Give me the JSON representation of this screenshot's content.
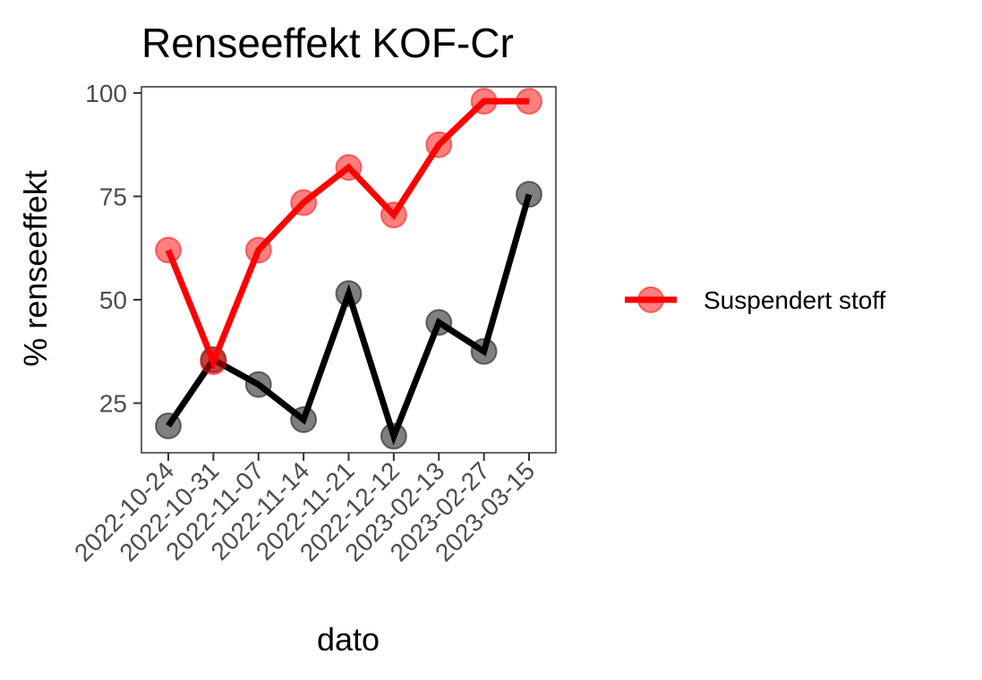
{
  "chart_data": {
    "type": "line",
    "title": "Renseeffekt KOF-Cr",
    "xlabel": "dato",
    "ylabel": "% renseeffekt",
    "categories": [
      "2022-10-24",
      "2022-10-31",
      "2022-11-07",
      "2022-11-14",
      "2022-11-21",
      "2022-12-12",
      "2023-02-13",
      "2023-02-27",
      "2023-03-15"
    ],
    "ylim": [
      13,
      101.5
    ],
    "yticks": [
      25,
      50,
      75,
      100
    ],
    "grid": false,
    "legend": {
      "position": "right",
      "entries": [
        "Suspendert stoff"
      ]
    },
    "series": [
      {
        "name": "Suspendert stoff",
        "color": "#ff0000",
        "values": [
          62,
          35,
          62,
          73.5,
          82,
          70.5,
          87.5,
          98,
          98
        ]
      },
      {
        "color": "#000000",
        "values": [
          19.5,
          35.5,
          29.5,
          21,
          51.5,
          17,
          44.5,
          37.5,
          75.5
        ]
      }
    ]
  }
}
